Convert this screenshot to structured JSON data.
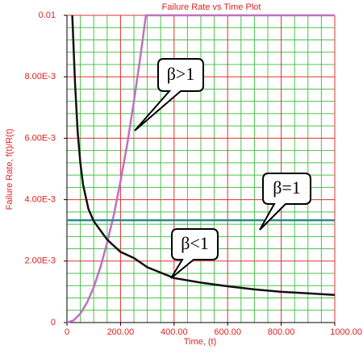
{
  "chart_data": {
    "type": "line",
    "title": "Failure Rate vs Time Plot",
    "x_label": "Time, (t)",
    "y_label": "Failure Rate, f(t)/R(t)",
    "xlim": [
      0,
      1000
    ],
    "ylim": [
      0,
      0.01
    ],
    "xticks": [
      0,
      {
        "value": 200,
        "label": "200.00"
      },
      {
        "value": 400,
        "label": "400.00"
      },
      {
        "value": 600,
        "label": "600.00"
      },
      {
        "value": 800,
        "label": "800.00"
      },
      {
        "value": 1000,
        "label": "1000.00"
      }
    ],
    "yticks": [
      0,
      {
        "value": 0.002,
        "label": "2.00E-3"
      },
      {
        "value": 0.004,
        "label": "4.00E-3"
      },
      {
        "value": 0.006,
        "label": "6.00E-3"
      },
      {
        "value": 0.008,
        "label": "8.00E-3"
      },
      0.01
    ],
    "xminorticks": [
      50,
      100,
      150,
      250,
      300,
      350,
      450,
      500,
      550,
      650,
      700,
      750,
      850,
      900,
      950
    ],
    "yminorticks": [
      0.0004,
      0.0008,
      0.0012,
      0.0016,
      0.0024,
      0.0028,
      0.0032,
      0.0036,
      0.0044,
      0.0048,
      0.0052,
      0.0056,
      0.0064,
      0.0068,
      0.0072,
      0.0076,
      0.0084,
      0.0088,
      0.0092,
      0.0096
    ],
    "grid": true,
    "major_grid_color": "#e03030",
    "minor_grid_color": "#4cc04c",
    "series": [
      {
        "color": "#c070c0",
        "x": [
          0,
          25,
          50,
          75,
          100,
          125,
          150,
          175,
          200,
          225,
          250,
          275,
          295,
          1000
        ],
        "values": [
          0,
          7e-05,
          0.00029,
          0.00065,
          0.00115,
          0.0018,
          0.0026,
          0.0035,
          0.0046,
          0.0058,
          0.0072,
          0.0087,
          0.01,
          0.01
        ]
      },
      {
        "color": "#2a8a8a",
        "x": [
          0,
          1000
        ],
        "values": [
          0.00333,
          0.00333
        ]
      },
      {
        "color": "#111111",
        "x": [
          20,
          30,
          40,
          50,
          60,
          80,
          100,
          125,
          150,
          175,
          200,
          250,
          300,
          400,
          500,
          600,
          700,
          800,
          900,
          1000
        ],
        "values": [
          0.01,
          0.0078,
          0.0062,
          0.0052,
          0.0045,
          0.0037,
          0.0033,
          0.003,
          0.0027,
          0.0025,
          0.0023,
          0.0021,
          0.0018,
          0.00145,
          0.0013,
          0.00118,
          0.00108,
          0.001,
          0.00095,
          0.0009
        ]
      }
    ],
    "annotations": [
      "β>1",
      "β=1",
      "β<1"
    ]
  }
}
